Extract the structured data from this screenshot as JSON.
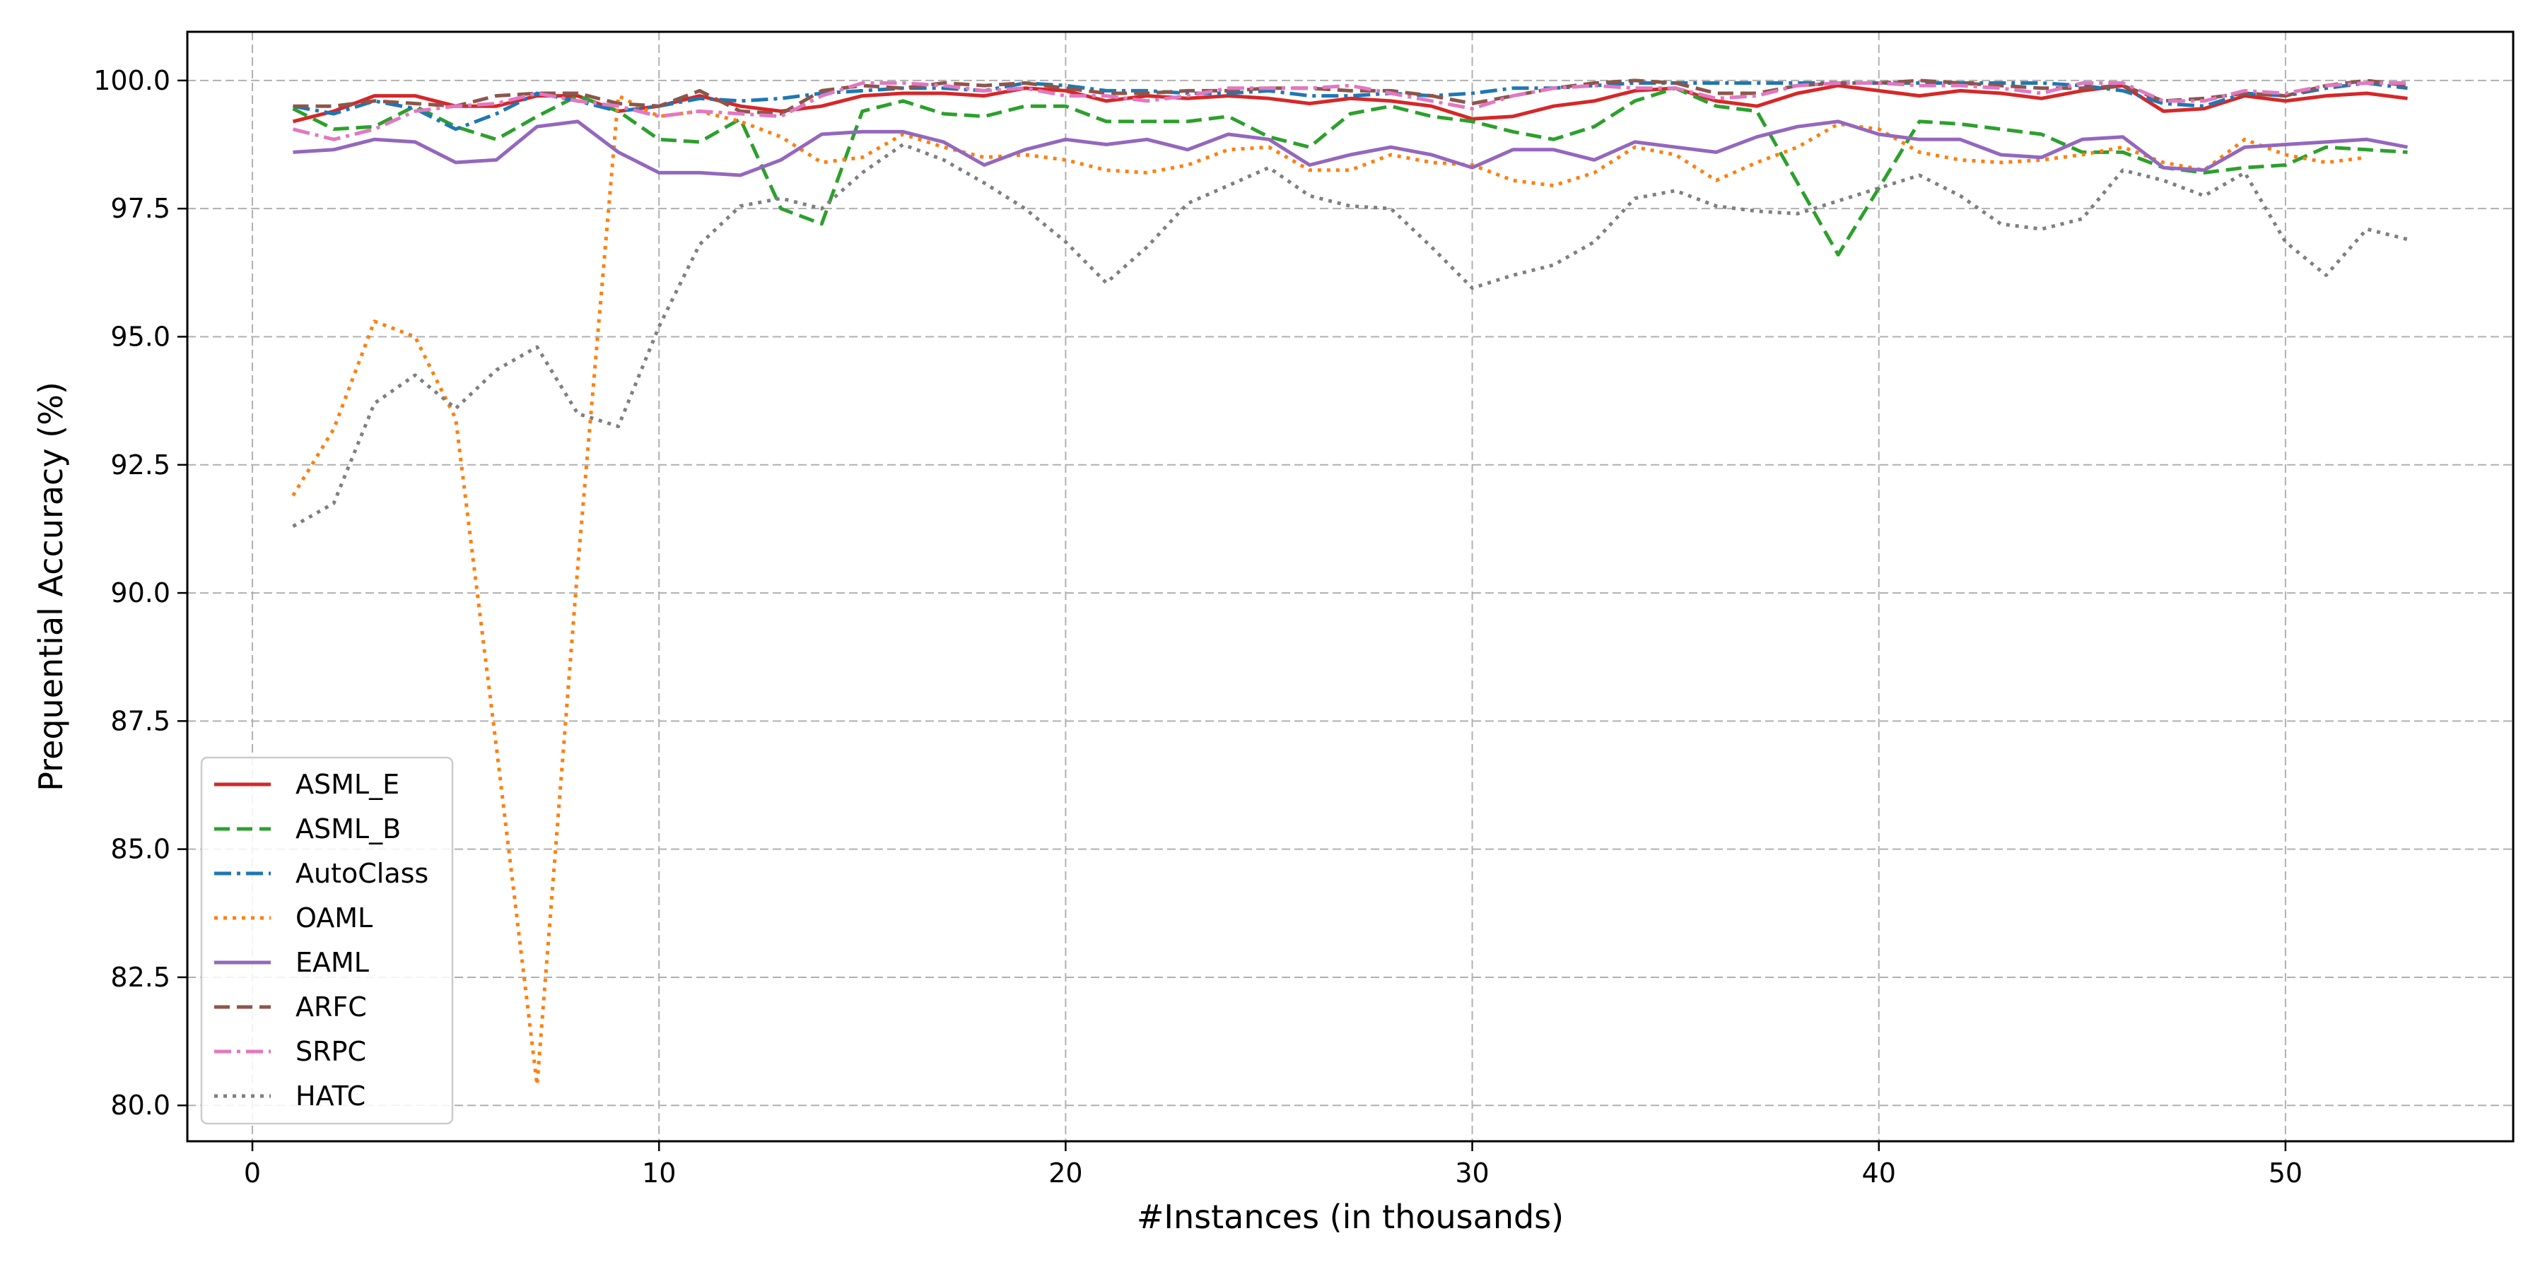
{
  "chart_data": {
    "type": "line",
    "title": "",
    "xlabel": "#Instances (in thousands)",
    "ylabel": "Prequential Accuracy (%)",
    "xlim": [
      -1.6,
      55.6
    ],
    "ylim": [
      79.3,
      100.95
    ],
    "xticks": [
      0,
      10,
      20,
      30,
      40,
      50
    ],
    "yticks": [
      80.0,
      82.5,
      85.0,
      87.5,
      90.0,
      92.5,
      95.0,
      97.5,
      100.0
    ],
    "grid": true,
    "legend_position": "lower-left",
    "x": [
      1,
      2,
      3,
      4,
      5,
      6,
      7,
      8,
      9,
      10,
      11,
      12,
      13,
      14,
      15,
      16,
      17,
      18,
      19,
      20,
      21,
      22,
      23,
      24,
      25,
      26,
      27,
      28,
      29,
      30,
      31,
      32,
      33,
      34,
      35,
      36,
      37,
      38,
      39,
      40,
      41,
      42,
      43,
      44,
      45,
      46,
      47,
      48,
      49,
      50,
      51,
      52,
      53
    ],
    "series": [
      {
        "name": "ASML_E",
        "color": "#d62728",
        "dash": "solid",
        "values": [
          99.2,
          99.4,
          99.7,
          99.7,
          99.5,
          99.5,
          99.7,
          99.7,
          99.4,
          99.5,
          99.7,
          99.5,
          99.4,
          99.5,
          99.7,
          99.75,
          99.75,
          99.7,
          99.85,
          99.8,
          99.6,
          99.7,
          99.65,
          99.7,
          99.65,
          99.55,
          99.65,
          99.6,
          99.5,
          99.25,
          99.3,
          99.5,
          99.6,
          99.8,
          99.85,
          99.6,
          99.5,
          99.75,
          99.9,
          99.8,
          99.7,
          99.8,
          99.75,
          99.65,
          99.8,
          99.9,
          99.4,
          99.45,
          99.7,
          99.6,
          99.7,
          99.75,
          99.65
        ]
      },
      {
        "name": "ASML_B",
        "color": "#2ca02c",
        "dash": "dashed",
        "values": [
          99.45,
          99.05,
          99.1,
          99.5,
          99.1,
          98.85,
          99.3,
          99.7,
          99.4,
          98.85,
          98.8,
          99.25,
          97.5,
          97.2,
          99.4,
          99.6,
          99.35,
          99.3,
          99.5,
          99.5,
          99.2,
          99.2,
          99.2,
          99.3,
          98.9,
          98.7,
          99.35,
          99.5,
          99.3,
          99.2,
          99.0,
          98.85,
          99.1,
          99.6,
          99.85,
          99.5,
          99.4,
          98.0,
          96.6,
          97.9,
          99.2,
          99.15,
          99.05,
          98.95,
          98.6,
          98.6,
          98.3,
          98.2,
          98.3,
          98.35,
          98.7,
          98.65,
          98.6
        ]
      },
      {
        "name": "AutoClass",
        "color": "#1f77b4",
        "dash": "dashdot",
        "values": [
          99.5,
          99.35,
          99.6,
          99.45,
          99.05,
          99.35,
          99.75,
          99.6,
          99.4,
          99.5,
          99.65,
          99.6,
          99.65,
          99.75,
          99.8,
          99.85,
          99.85,
          99.8,
          99.95,
          99.9,
          99.8,
          99.8,
          99.75,
          99.75,
          99.8,
          99.7,
          99.7,
          99.75,
          99.7,
          99.75,
          99.85,
          99.85,
          99.9,
          99.95,
          99.95,
          99.95,
          99.95,
          99.95,
          99.95,
          99.95,
          99.95,
          99.95,
          99.95,
          99.95,
          99.9,
          99.8,
          99.55,
          99.5,
          99.75,
          99.7,
          99.85,
          99.95,
          99.85
        ]
      },
      {
        "name": "OAML",
        "color": "#ff7f0e",
        "dash": "dotted",
        "values": [
          91.9,
          93.2,
          95.3,
          95.0,
          93.4,
          87.0,
          80.4,
          90.5,
          99.7,
          99.3,
          99.4,
          99.2,
          98.9,
          98.4,
          98.5,
          98.95,
          98.7,
          98.5,
          98.55,
          98.45,
          98.25,
          98.2,
          98.35,
          98.65,
          98.7,
          98.25,
          98.25,
          98.55,
          98.4,
          98.35,
          98.05,
          97.95,
          98.2,
          98.7,
          98.55,
          98.05,
          98.4,
          98.7,
          99.15,
          99.05,
          98.6,
          98.45,
          98.4,
          98.45,
          98.55,
          98.7,
          98.4,
          98.25,
          98.85,
          98.55,
          98.4,
          98.5,
          null
        ]
      },
      {
        "name": "EAML",
        "color": "#9467bd",
        "dash": "solid",
        "values": [
          98.6,
          98.65,
          98.85,
          98.8,
          98.4,
          98.45,
          99.1,
          99.2,
          98.6,
          98.2,
          98.2,
          98.15,
          98.45,
          98.95,
          99.0,
          99.0,
          98.8,
          98.35,
          98.65,
          98.85,
          98.75,
          98.85,
          98.65,
          98.95,
          98.85,
          98.35,
          98.55,
          98.7,
          98.55,
          98.3,
          98.65,
          98.65,
          98.45,
          98.8,
          98.7,
          98.6,
          98.9,
          99.1,
          99.2,
          98.95,
          98.85,
          98.85,
          98.55,
          98.5,
          98.85,
          98.9,
          98.3,
          98.25,
          98.7,
          98.75,
          98.8,
          98.85,
          98.7
        ]
      },
      {
        "name": "ARFC",
        "color": "#8c564b",
        "dash": "dashed",
        "values": [
          99.5,
          99.5,
          99.6,
          99.55,
          99.5,
          99.7,
          99.75,
          99.75,
          99.55,
          99.5,
          99.8,
          99.4,
          99.35,
          99.8,
          99.9,
          99.85,
          99.95,
          99.9,
          99.95,
          99.85,
          99.75,
          99.75,
          99.8,
          99.8,
          99.85,
          99.85,
          99.8,
          99.8,
          99.7,
          99.55,
          99.7,
          99.85,
          99.95,
          100.0,
          99.95,
          99.75,
          99.75,
          99.9,
          99.95,
          99.95,
          100.0,
          99.95,
          99.9,
          99.85,
          99.85,
          99.9,
          99.6,
          99.65,
          99.75,
          99.7,
          99.9,
          100.0,
          99.9
        ]
      },
      {
        "name": "SRPC",
        "color": "#e377c2",
        "dash": "dashdot",
        "values": [
          99.05,
          98.85,
          99.05,
          99.4,
          99.5,
          99.55,
          99.75,
          99.6,
          99.5,
          99.3,
          99.4,
          99.35,
          99.3,
          99.7,
          99.95,
          99.95,
          99.9,
          99.8,
          99.85,
          99.7,
          99.7,
          99.6,
          99.7,
          99.85,
          99.85,
          99.85,
          99.9,
          99.75,
          99.6,
          99.45,
          99.7,
          99.85,
          99.9,
          99.85,
          99.85,
          99.65,
          99.7,
          99.9,
          99.95,
          99.95,
          99.9,
          99.9,
          99.85,
          99.75,
          99.95,
          99.95,
          99.6,
          99.6,
          99.8,
          99.75,
          99.9,
          99.95,
          99.95
        ]
      },
      {
        "name": "HATC",
        "color": "#7f7f7f",
        "dash": "dotted",
        "values": [
          91.3,
          91.75,
          93.7,
          94.25,
          93.6,
          94.35,
          94.8,
          93.5,
          93.25,
          95.2,
          96.8,
          97.55,
          97.7,
          97.5,
          98.2,
          98.75,
          98.45,
          98.0,
          97.5,
          96.85,
          96.05,
          96.75,
          97.6,
          97.95,
          98.3,
          97.75,
          97.55,
          97.5,
          96.75,
          95.95,
          96.2,
          96.4,
          96.85,
          97.7,
          97.85,
          97.55,
          97.45,
          97.4,
          97.65,
          97.9,
          98.15,
          97.75,
          97.2,
          97.1,
          97.3,
          98.25,
          98.05,
          97.75,
          98.2,
          96.85,
          96.2,
          97.1,
          96.9
        ]
      }
    ]
  }
}
